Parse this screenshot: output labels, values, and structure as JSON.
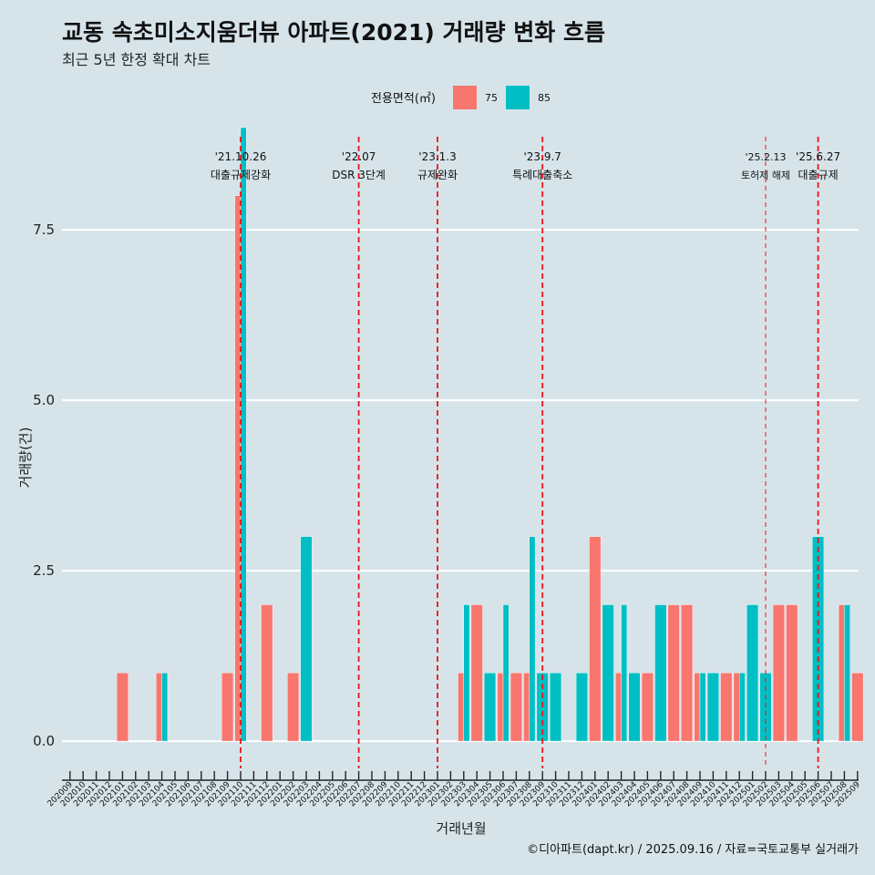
{
  "title": "교동 속초미소지움더뷰 아파트(2021) 거래량 변화 흐름",
  "subtitle": "최근 5년 한정 확대 차트",
  "caption": "©디아파트(dapt.kr) / 2025.09.16 / 자료=국토교통부 실거래가",
  "colors": {
    "s75": "#f8766d",
    "s85": "#00bfc4",
    "background": "#d6e4ea",
    "vline": "#e8151b"
  },
  "chart_data": {
    "type": "bar",
    "xlabel": "거래년월",
    "ylabel": "거래량(건)",
    "ylim": [
      -0.4,
      9.0
    ],
    "yticks": [
      0.0,
      2.5,
      5.0,
      7.5
    ],
    "ytick_labels": [
      "0.0",
      "2.5",
      "5.0",
      "7.5"
    ],
    "grid": "horizontal",
    "legend": {
      "title": "전용면적(㎡)",
      "position": "top"
    },
    "categories": [
      "202009",
      "202010",
      "202011",
      "202012",
      "202101",
      "202102",
      "202103",
      "202104",
      "202105",
      "202106",
      "202107",
      "202108",
      "202109",
      "202110",
      "202111",
      "202112",
      "202201",
      "202202",
      "202203",
      "202204",
      "202205",
      "202206",
      "202207",
      "202208",
      "202209",
      "202210",
      "202211",
      "202212",
      "202301",
      "202302",
      "202303",
      "202304",
      "202305",
      "202306",
      "202307",
      "202308",
      "202309",
      "202310",
      "202311",
      "202312",
      "202401",
      "202402",
      "202403",
      "202404",
      "202405",
      "202406",
      "202407",
      "202408",
      "202409",
      "202410",
      "202411",
      "202412",
      "202501",
      "202502",
      "202503",
      "202504",
      "202505",
      "202506",
      "202507",
      "202508",
      "202509"
    ],
    "series": [
      {
        "name": "75",
        "values": [
          0,
          0,
          0,
          0,
          1,
          0,
          0,
          1,
          0,
          0,
          0,
          0,
          1,
          8,
          0,
          2,
          0,
          1,
          0,
          0,
          0,
          0,
          0,
          0,
          0,
          0,
          0,
          0,
          0,
          0,
          1,
          2,
          0,
          1,
          1,
          1,
          0,
          0,
          0,
          0,
          3,
          0,
          1,
          0,
          1,
          0,
          2,
          2,
          1,
          0,
          1,
          1,
          0,
          0,
          2,
          2,
          0,
          0,
          0,
          2,
          1
        ]
      },
      {
        "name": "85",
        "values": [
          0,
          0,
          0,
          0,
          0,
          0,
          0,
          1,
          0,
          0,
          0,
          0,
          0,
          9,
          0,
          0,
          0,
          0,
          3,
          0,
          0,
          0,
          0,
          0,
          0,
          0,
          0,
          0,
          0,
          0,
          2,
          0,
          1,
          2,
          0,
          3,
          1,
          1,
          0,
          1,
          0,
          2,
          2,
          1,
          0,
          2,
          0,
          0,
          1,
          1,
          0,
          1,
          2,
          1,
          0,
          0,
          0,
          3,
          0,
          2,
          0
        ]
      }
    ],
    "annotations": [
      {
        "category": "202110",
        "date": "'21.10.26",
        "label": "대출규제강화",
        "style": "dashed",
        "small": false
      },
      {
        "category": "202207",
        "date": "'22.07",
        "label": "DSR 3단계",
        "style": "dashed",
        "small": false
      },
      {
        "category": "202301",
        "date": "'23.1.3",
        "label": "규제완화",
        "style": "dashed",
        "small": false
      },
      {
        "category": "202309",
        "date": "'23.9.7",
        "label": "특례대출축소",
        "style": "dashed",
        "small": false
      },
      {
        "category": "202502",
        "date": "'25.2.13",
        "label": "토허제 해제",
        "style": "dashed-thin",
        "small": true
      },
      {
        "category": "202506",
        "date": "'25.6.27",
        "label": "대출규제",
        "style": "dashed",
        "small": false
      }
    ]
  }
}
